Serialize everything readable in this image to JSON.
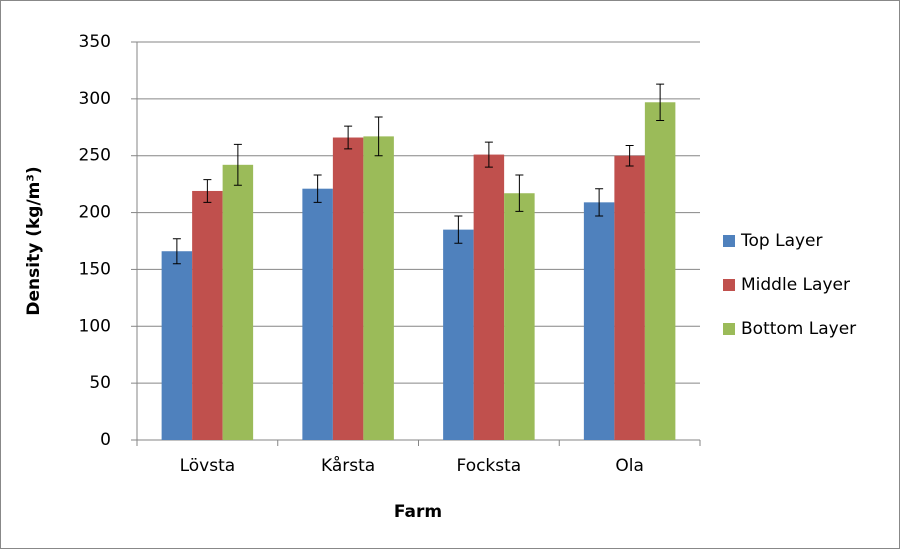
{
  "chart_data": {
    "type": "bar",
    "x_label": "Farm",
    "y_label": "Density (kg/m³)",
    "categories": [
      "Lövsta",
      "Kårsta",
      "Focksta",
      "Ola"
    ],
    "series": [
      {
        "name": "Top Layer",
        "color": "#4f81bd",
        "values": [
          166,
          221,
          185,
          209
        ],
        "errors": [
          11,
          12,
          12,
          12
        ]
      },
      {
        "name": "Middle Layer",
        "color": "#c0504d",
        "values": [
          219,
          266,
          251,
          250
        ],
        "errors": [
          10,
          10,
          11,
          9
        ]
      },
      {
        "name": "Bottom Layer",
        "color": "#9bbb59",
        "values": [
          242,
          267,
          217,
          297
        ],
        "errors": [
          18,
          17,
          16,
          16
        ]
      }
    ],
    "ylim": [
      0,
      350
    ],
    "yticks": [
      0,
      50,
      100,
      150,
      200,
      250,
      300,
      350
    ],
    "grid": true,
    "legend": "right"
  }
}
